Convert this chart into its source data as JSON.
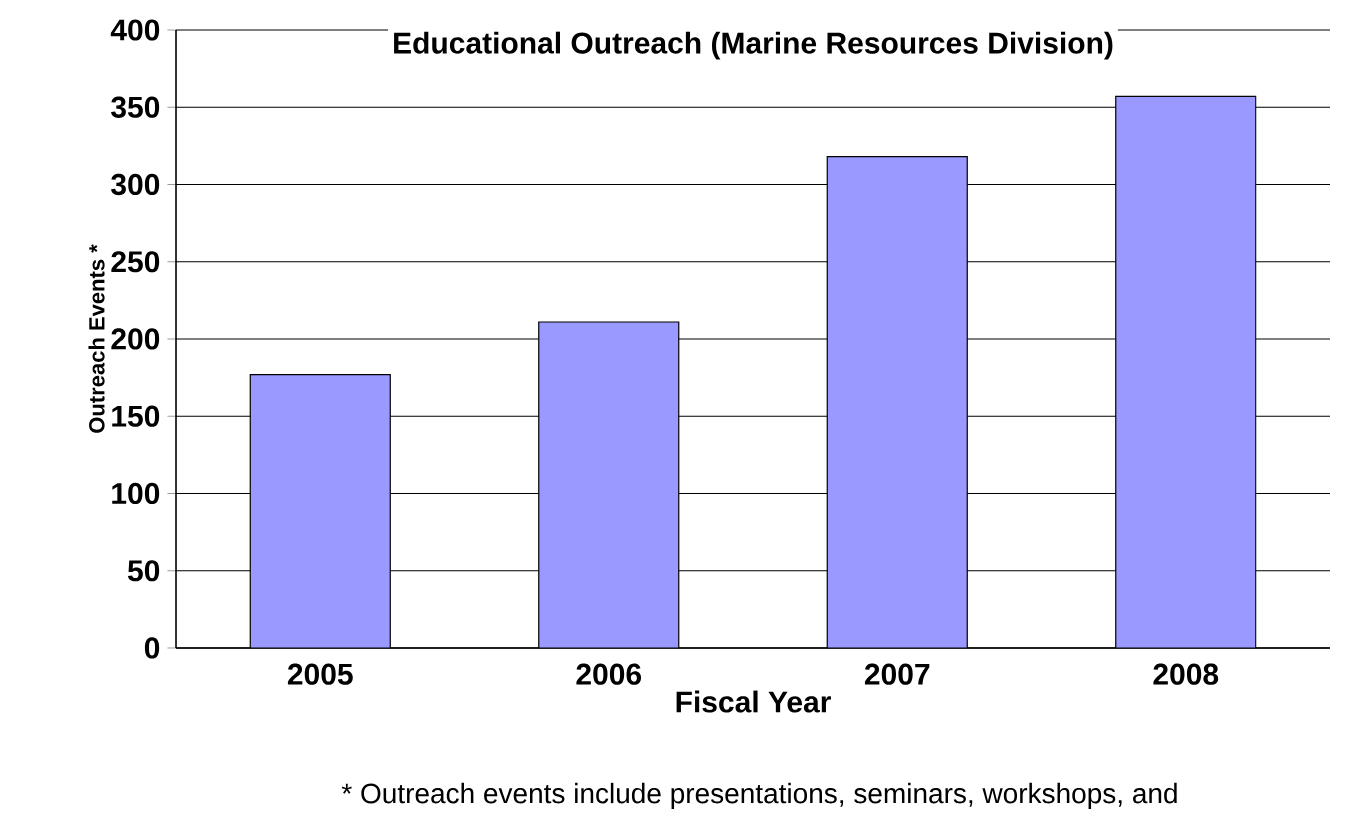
{
  "chart_data": {
    "type": "bar",
    "title": "Educational Outreach (Marine Resources Division)",
    "xlabel": "Fiscal Year",
    "ylabel": "Outreach Events *",
    "categories": [
      "2005",
      "2006",
      "2007",
      "2008"
    ],
    "values": [
      177,
      211,
      318,
      357
    ],
    "color": "#9999ff",
    "ylim": [
      0,
      400
    ],
    "yticks": [
      0,
      50,
      100,
      150,
      200,
      250,
      300,
      350,
      400
    ],
    "grid": "y",
    "annotations": [
      "* Outreach events include presentations, seminars, workshops, and"
    ]
  }
}
